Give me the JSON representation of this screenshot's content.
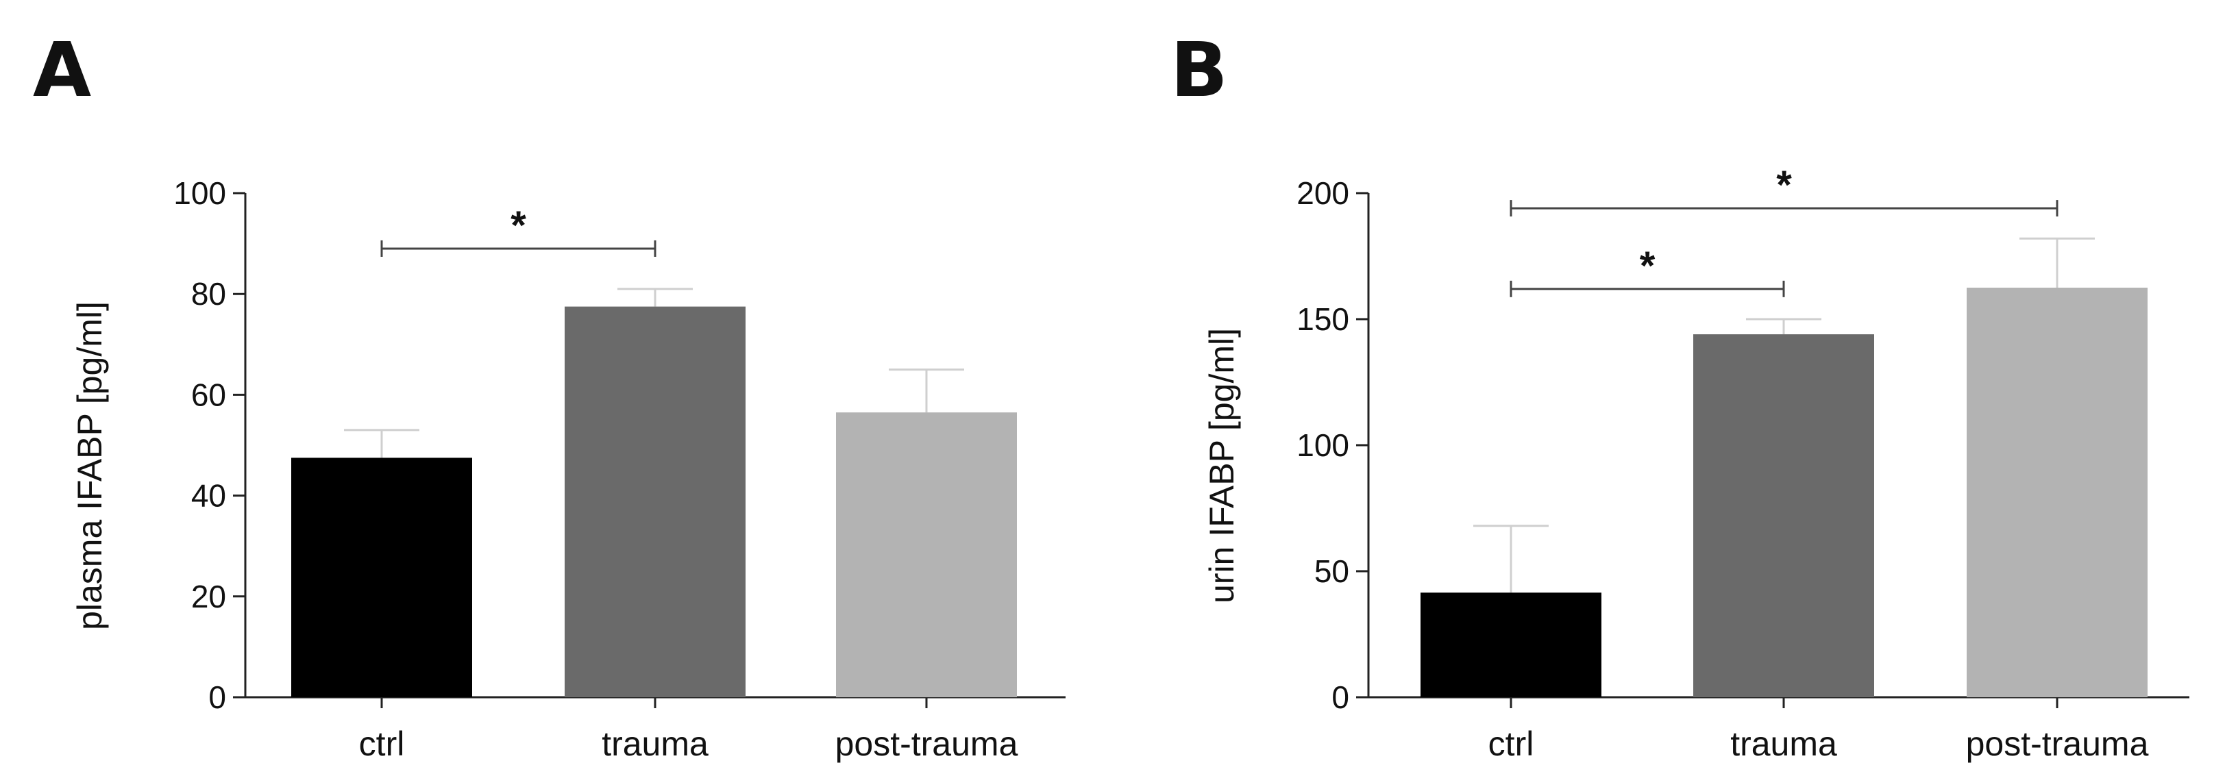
{
  "chart_data": [
    {
      "type": "bar",
      "panel_label": "A",
      "categories": [
        "ctrl",
        "trauma",
        "post-trauma"
      ],
      "values": [
        47.5,
        77.5,
        56.5
      ],
      "error_upper": [
        53,
        81,
        65
      ],
      "bar_colors": [
        "#000000",
        "#6a6a6a",
        "#b3b3b3"
      ],
      "ylabel": "plasma IFABP [pg/ml]",
      "ylim": [
        0,
        100
      ],
      "yticks": [
        0,
        20,
        40,
        60,
        80,
        100
      ],
      "ytick_labels": [
        "0",
        "20",
        "40",
        "60",
        "80",
        "100"
      ],
      "significance": [
        {
          "from": 0,
          "to": 1,
          "label": "*",
          "y": 89
        }
      ],
      "grid": false
    },
    {
      "type": "bar",
      "panel_label": "B",
      "categories": [
        "ctrl",
        "trauma",
        "post-trauma"
      ],
      "values": [
        41.5,
        144,
        162.5
      ],
      "error_upper": [
        68,
        150,
        182
      ],
      "bar_colors": [
        "#000000",
        "#6a6a6a",
        "#b3b3b3"
      ],
      "ylabel": "urin IFABP [pg/ml]",
      "ylim": [
        0,
        200
      ],
      "yticks": [
        0,
        50,
        100,
        150,
        200
      ],
      "ytick_labels": [
        "0",
        "50",
        "100",
        "150",
        "200"
      ],
      "significance": [
        {
          "from": 0,
          "to": 1,
          "label": "*",
          "y": 162
        },
        {
          "from": 0,
          "to": 2,
          "label": "*",
          "y": 194
        }
      ],
      "grid": false
    }
  ]
}
